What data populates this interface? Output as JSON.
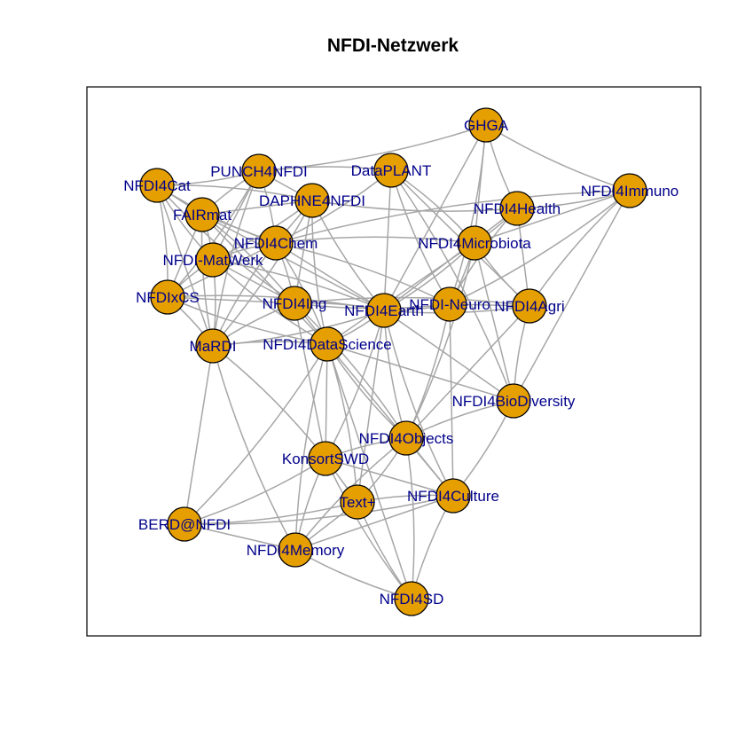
{
  "title": "NFDI-Netzwerk",
  "colors": {
    "node_fill": "#E69F00",
    "node_stroke": "#000000",
    "edge": "#A6A6A6",
    "label": "#00008B",
    "frame": "#000000"
  },
  "nodes": [
    {
      "id": "GHGA",
      "label": "GHGA"
    },
    {
      "id": "PUNCH4NFDI",
      "label": "PUNCH4NFDI"
    },
    {
      "id": "DataPLANT",
      "label": "DataPLANT"
    },
    {
      "id": "NFDI4Cat",
      "label": "NFDI4Cat"
    },
    {
      "id": "NFDI4Immuno",
      "label": "NFDI4Immuno"
    },
    {
      "id": "DAPHNE4NFDI",
      "label": "DAPHNE4NFDI"
    },
    {
      "id": "FAIRmat",
      "label": "FAIRmat"
    },
    {
      "id": "NFDI4Health",
      "label": "NFDI4Health"
    },
    {
      "id": "NFDI4Chem",
      "label": "NFDI4Chem"
    },
    {
      "id": "NFDI4Microbiota",
      "label": "NFDI4Microbiota"
    },
    {
      "id": "NFDI-MatWerk",
      "label": "NFDI-MatWerk"
    },
    {
      "id": "NFDIxCS",
      "label": "NFDIxCS"
    },
    {
      "id": "NFDI4Ing",
      "label": "NFDI4Ing"
    },
    {
      "id": "NFDI4Earth",
      "label": "NFDI4Earth"
    },
    {
      "id": "NFDI-Neuro",
      "label": "NFDI-Neuro"
    },
    {
      "id": "NFDI4Agri",
      "label": "NFDI4Agri"
    },
    {
      "id": "MaRDI",
      "label": "MaRDI"
    },
    {
      "id": "NFDI4DataScience",
      "label": "NFDI4DataScience"
    },
    {
      "id": "NFDI4BioDiversity",
      "label": "NFDI4BioDiversity"
    },
    {
      "id": "NFDI4Objects",
      "label": "NFDI4Objects"
    },
    {
      "id": "KonsortSWD",
      "label": "KonsortSWD"
    },
    {
      "id": "NFDI4Culture",
      "label": "NFDI4Culture"
    },
    {
      "id": "Text+",
      "label": "Text+"
    },
    {
      "id": "BERD@NFDI",
      "label": "BERD@NFDI"
    },
    {
      "id": "NFDI4Memory",
      "label": "NFDI4Memory"
    },
    {
      "id": "NFDI4SD",
      "label": "NFDI4SD"
    }
  ],
  "edges": [
    [
      "GHGA",
      "PUNCH4NFDI"
    ],
    [
      "GHGA",
      "NFDI4Microbiota"
    ],
    [
      "GHGA",
      "NFDI4Health"
    ],
    [
      "GHGA",
      "NFDI-Neuro"
    ],
    [
      "GHGA",
      "NFDI4Earth"
    ],
    [
      "GHGA",
      "NFDI4Immuno"
    ],
    [
      "NFDI4Immuno",
      "NFDI4Health"
    ],
    [
      "NFDI4Immuno",
      "NFDI4Microbiota"
    ],
    [
      "NFDI4Immuno",
      "NFDI4Agri"
    ],
    [
      "NFDI4Immuno",
      "NFDI-Neuro"
    ],
    [
      "NFDI4Immuno",
      "NFDI4BioDiversity"
    ],
    [
      "NFDI4Immuno",
      "NFDI4Chem"
    ],
    [
      "NFDI4Health",
      "NFDI4Microbiota"
    ],
    [
      "NFDI4Health",
      "NFDI4Agri"
    ],
    [
      "NFDI4Health",
      "NFDI-Neuro"
    ],
    [
      "NFDI4Health",
      "DAPHNE4NFDI"
    ],
    [
      "NFDI4Health",
      "NFDI4Earth"
    ],
    [
      "NFDI4Microbiota",
      "NFDI4Agri"
    ],
    [
      "NFDI4Microbiota",
      "NFDI-Neuro"
    ],
    [
      "NFDI4Microbiota",
      "NFDI4BioDiversity"
    ],
    [
      "NFDI4Microbiota",
      "NFDI4Chem"
    ],
    [
      "NFDI4Microbiota",
      "NFDI4Earth"
    ],
    [
      "NFDI4Microbiota",
      "NFDI4DataScience"
    ],
    [
      "NFDI4Microbiota",
      "DataPLANT"
    ],
    [
      "NFDI4Microbiota",
      "NFDI4Objects"
    ],
    [
      "DataPLANT",
      "NFDI4Agri"
    ],
    [
      "DataPLANT",
      "NFDI-Neuro"
    ],
    [
      "DataPLANT",
      "NFDI4Chem"
    ],
    [
      "DataPLANT",
      "NFDI4Earth"
    ],
    [
      "DataPLANT",
      "PUNCH4NFDI"
    ],
    [
      "DataPLANT",
      "NFDI4BioDiversity"
    ],
    [
      "NFDI4Agri",
      "NFDI-Neuro"
    ],
    [
      "NFDI4Agri",
      "NFDI4BioDiversity"
    ],
    [
      "NFDI4Agri",
      "NFDI4Earth"
    ],
    [
      "NFDI4Agri",
      "NFDI4Objects"
    ],
    [
      "NFDI4Agri",
      "NFDI4Ing"
    ],
    [
      "NFDI-Neuro",
      "NFDI4Earth"
    ],
    [
      "NFDI-Neuro",
      "NFDI4Culture"
    ],
    [
      "NFDI-Neuro",
      "NFDI4Chem"
    ],
    [
      "NFDI-Neuro",
      "NFDI4Objects"
    ],
    [
      "NFDI4BioDiversity",
      "NFDI4Earth"
    ],
    [
      "NFDI4BioDiversity",
      "NFDI4Objects"
    ],
    [
      "NFDI4BioDiversity",
      "NFDI4Culture"
    ],
    [
      "NFDI4BioDiversity",
      "NFDI4DataScience"
    ],
    [
      "NFDI4Earth",
      "NFDI4Ing"
    ],
    [
      "NFDI4Earth",
      "NFDI4DataScience"
    ],
    [
      "NFDI4Earth",
      "NFDI4Chem"
    ],
    [
      "NFDI4Earth",
      "NFDI4Objects"
    ],
    [
      "NFDI4Earth",
      "KonsortSWD"
    ],
    [
      "NFDI4Earth",
      "Text+"
    ],
    [
      "NFDI4Earth",
      "NFDI4Culture"
    ],
    [
      "NFDI4Earth",
      "MaRDI"
    ],
    [
      "NFDI4Earth",
      "FAIRmat"
    ],
    [
      "NFDI4Earth",
      "NFDI-MatWerk"
    ],
    [
      "NFDI4Earth",
      "DAPHNE4NFDI"
    ],
    [
      "NFDI4Chem",
      "FAIRmat"
    ],
    [
      "NFDI4Chem",
      "NFDI-MatWerk"
    ],
    [
      "NFDI4Chem",
      "NFDI4Cat"
    ],
    [
      "NFDI4Chem",
      "DAPHNE4NFDI"
    ],
    [
      "NFDI4Chem",
      "PUNCH4NFDI"
    ],
    [
      "NFDI4Chem",
      "NFDI4Ing"
    ],
    [
      "NFDI4Chem",
      "NFDIxCS"
    ],
    [
      "NFDI4Chem",
      "MaRDI"
    ],
    [
      "NFDI4Chem",
      "NFDI4DataScience"
    ],
    [
      "PUNCH4NFDI",
      "DAPHNE4NFDI"
    ],
    [
      "PUNCH4NFDI",
      "FAIRmat"
    ],
    [
      "PUNCH4NFDI",
      "NFDI4Cat"
    ],
    [
      "PUNCH4NFDI",
      "NFDI-MatWerk"
    ],
    [
      "PUNCH4NFDI",
      "MaRDI"
    ],
    [
      "PUNCH4NFDI",
      "NFDIxCS"
    ],
    [
      "DAPHNE4NFDI",
      "FAIRmat"
    ],
    [
      "DAPHNE4NFDI",
      "NFDI4Cat"
    ],
    [
      "DAPHNE4NFDI",
      "NFDI-MatWerk"
    ],
    [
      "DAPHNE4NFDI",
      "NFDI4Ing"
    ],
    [
      "DAPHNE4NFDI",
      "NFDI4DataScience"
    ],
    [
      "DAPHNE4NFDI",
      "MaRDI"
    ],
    [
      "NFDI4Cat",
      "FAIRmat"
    ],
    [
      "NFDI4Cat",
      "NFDI-MatWerk"
    ],
    [
      "NFDI4Cat",
      "NFDIxCS"
    ],
    [
      "NFDI4Cat",
      "MaRDI"
    ],
    [
      "NFDI4Cat",
      "NFDI4Ing"
    ],
    [
      "FAIRmat",
      "NFDI-MatWerk"
    ],
    [
      "FAIRmat",
      "NFDIxCS"
    ],
    [
      "FAIRmat",
      "MaRDI"
    ],
    [
      "FAIRmat",
      "NFDI4Ing"
    ],
    [
      "FAIRmat",
      "NFDI4DataScience"
    ],
    [
      "NFDI-MatWerk",
      "NFDIxCS"
    ],
    [
      "NFDI-MatWerk",
      "MaRDI"
    ],
    [
      "NFDI-MatWerk",
      "NFDI4Ing"
    ],
    [
      "NFDI-MatWerk",
      "NFDI4DataScience"
    ],
    [
      "NFDIxCS",
      "MaRDI"
    ],
    [
      "NFDIxCS",
      "NFDI4Ing"
    ],
    [
      "NFDIxCS",
      "NFDI4DataScience"
    ],
    [
      "NFDIxCS",
      "NFDI4Earth"
    ],
    [
      "NFDI4Ing",
      "NFDI4DataScience"
    ],
    [
      "NFDI4Ing",
      "MaRDI"
    ],
    [
      "NFDI4Ing",
      "NFDI4Objects"
    ],
    [
      "NFDI4Ing",
      "KonsortSWD"
    ],
    [
      "NFDI4Ing",
      "NFDI-Neuro"
    ],
    [
      "MaRDI",
      "NFDI4DataScience"
    ],
    [
      "MaRDI",
      "BERD@NFDI"
    ],
    [
      "MaRDI",
      "NFDI4Memory"
    ],
    [
      "MaRDI",
      "KonsortSWD"
    ],
    [
      "NFDI4DataScience",
      "KonsortSWD"
    ],
    [
      "NFDI4DataScience",
      "NFDI4Objects"
    ],
    [
      "NFDI4DataScience",
      "Text+"
    ],
    [
      "NFDI4DataScience",
      "NFDI4Culture"
    ],
    [
      "NFDI4DataScience",
      "NFDI4Memory"
    ],
    [
      "NFDI4DataScience",
      "BERD@NFDI"
    ],
    [
      "NFDI4DataScience",
      "NFDI4SD"
    ],
    [
      "NFDI4Objects",
      "KonsortSWD"
    ],
    [
      "NFDI4Objects",
      "Text+"
    ],
    [
      "NFDI4Objects",
      "NFDI4Culture"
    ],
    [
      "NFDI4Objects",
      "NFDI4Memory"
    ],
    [
      "NFDI4Objects",
      "NFDI4SD"
    ],
    [
      "KonsortSWD",
      "Text+"
    ],
    [
      "KonsortSWD",
      "NFDI4Memory"
    ],
    [
      "KonsortSWD",
      "BERD@NFDI"
    ],
    [
      "KonsortSWD",
      "NFDI4Culture"
    ],
    [
      "KonsortSWD",
      "NFDI4SD"
    ],
    [
      "Text+",
      "NFDI4Culture"
    ],
    [
      "Text+",
      "NFDI4Memory"
    ],
    [
      "Text+",
      "NFDI4SD"
    ],
    [
      "Text+",
      "BERD@NFDI"
    ],
    [
      "NFDI4Culture",
      "NFDI4Memory"
    ],
    [
      "NFDI4Culture",
      "NFDI4SD"
    ],
    [
      "NFDI4Culture",
      "BERD@NFDI"
    ],
    [
      "BERD@NFDI",
      "NFDI4Memory"
    ],
    [
      "NFDI4Memory",
      "NFDI4SD"
    ]
  ]
}
